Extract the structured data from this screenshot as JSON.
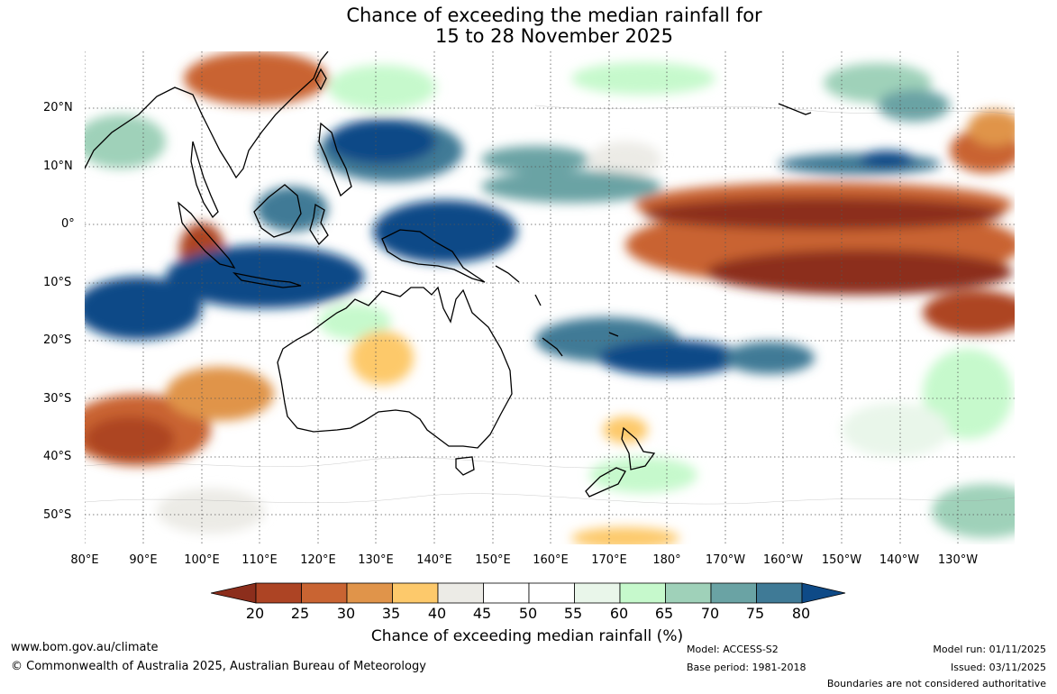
{
  "title_line1": "Chance of exceeding the median rainfall for",
  "title_line2": "15 to 28 November 2025",
  "lat_labels": [
    "20°N",
    "10°N",
    "0°",
    "10°S",
    "20°S",
    "30°S",
    "40°S",
    "50°S"
  ],
  "lon_labels": [
    "80°E",
    "90°E",
    "100°E",
    "110°E",
    "120°E",
    "130°E",
    "140°E",
    "150°E",
    "160°E",
    "170°E",
    "180°",
    "170°W",
    "160°W",
    "150°W",
    "140°W",
    "130°W"
  ],
  "colorbar": {
    "ticks": [
      "20",
      "25",
      "30",
      "35",
      "40",
      "45",
      "50",
      "55",
      "60",
      "65",
      "70",
      "75",
      "80"
    ],
    "colors": [
      "#8c2e1c",
      "#ad4424",
      "#c96432",
      "#e0944a",
      "#fdc96b",
      "#ecebe6",
      "#ffffff",
      "#ffffff",
      "#e9f6ea",
      "#c6f9cc",
      "#9fd1b9",
      "#6aa3a4",
      "#3f7a96",
      "#0e4a87"
    ],
    "title": "Chance of exceeding median rainfall (%)"
  },
  "footer": {
    "website": "www.bom.gov.au/climate",
    "copyright": "© Commonwealth of Australia 2025, Australian Bureau of Meteorology",
    "model": "Model: ACCESS-S2",
    "base_period": "Base period: 1981-2018",
    "model_run": "Model run: 01/11/2025",
    "issued": "Issued: 03/11/2025",
    "disclaimer": "Boundaries are not considered authoritative"
  }
}
